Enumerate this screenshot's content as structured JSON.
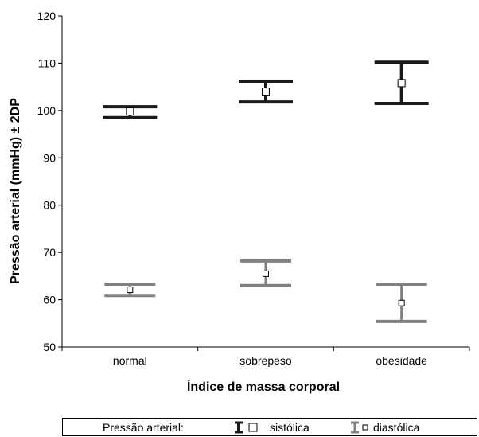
{
  "chart_data": {
    "type": "error-bar",
    "title": "",
    "xlabel": "Índice de massa corporal",
    "ylabel": "Pressão arterial (mmHg) ± 2DP",
    "categories": [
      "normal",
      "sobrepeso",
      "obesidade"
    ],
    "ylim": [
      50,
      120
    ],
    "yticks": [
      50,
      60,
      70,
      80,
      90,
      100,
      110,
      120
    ],
    "series": [
      {
        "name": "sistólica",
        "color": "#1a1a1a",
        "mean": [
          99.8,
          104.0,
          105.8
        ],
        "lower": [
          98.5,
          101.8,
          101.5
        ],
        "upper": [
          100.8,
          106.2,
          110.2
        ]
      },
      {
        "name": "diastólica",
        "color": "#808080",
        "mean": [
          62.1,
          65.5,
          59.3
        ],
        "lower": [
          60.9,
          63.0,
          55.4
        ],
        "upper": [
          63.3,
          68.2,
          63.3
        ]
      }
    ],
    "legend": {
      "title": "Pressão arterial:",
      "position": "bottom"
    }
  }
}
